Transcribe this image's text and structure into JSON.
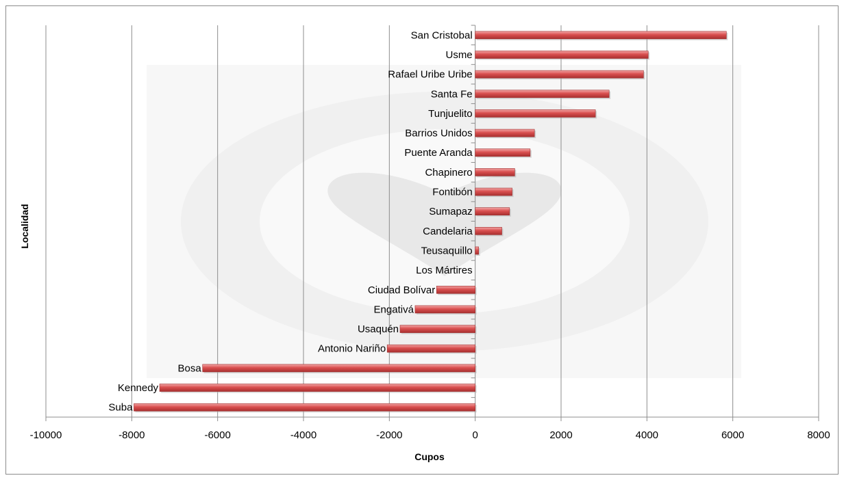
{
  "chart_data": {
    "type": "bar",
    "orientation": "horizontal",
    "xlabel": "Cupos",
    "ylabel": "Localidad",
    "xlim": [
      -10000,
      8000
    ],
    "x_ticks": [
      -10000,
      -8000,
      -6000,
      -4000,
      -2000,
      0,
      2000,
      4000,
      6000,
      8000
    ],
    "grid": "vertical major gridlines",
    "legend": "none",
    "bar_color": "#d94f4f",
    "categories": [
      "San Cristobal",
      "Usme",
      "Rafael Uribe Uribe",
      "Santa Fe",
      "Tunjuelito",
      "Barrios Unidos",
      "Puente Aranda",
      "Chapinero",
      "Fontibón",
      "Sumapaz",
      "Candelaria",
      "Teusaquillo",
      "Los Mártires",
      "Ciudad Bolívar",
      "Engativá",
      "Usaquén",
      "Antonio Nariño",
      "Bosa",
      "Kennedy",
      "Suba"
    ],
    "values": [
      5850,
      4030,
      3920,
      3120,
      2800,
      1380,
      1280,
      920,
      860,
      800,
      620,
      80,
      0,
      -900,
      -1400,
      -1750,
      -2050,
      -6350,
      -7350,
      -7950
    ]
  }
}
